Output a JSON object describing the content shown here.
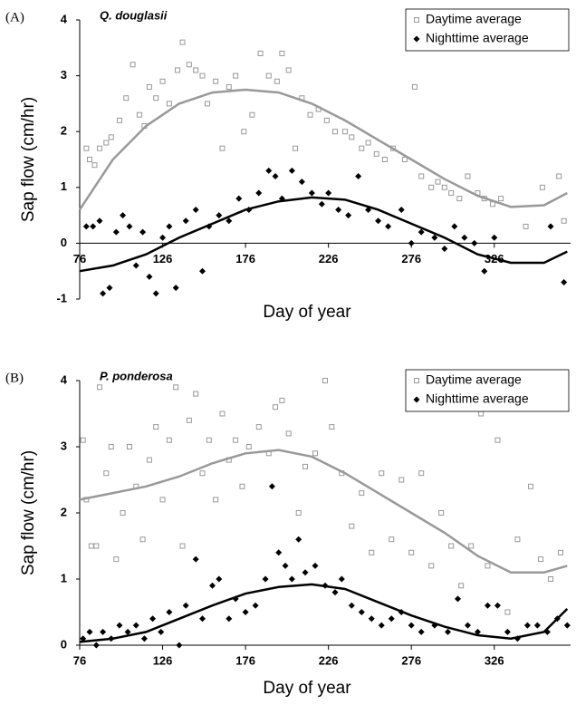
{
  "chart_data": [
    {
      "type": "scatter",
      "panel_label": "(A)",
      "title": "Q. douglasii",
      "x_label": "Day of year",
      "y_label": "Sap flow (cm/hr)",
      "xlim": [
        76,
        372
      ],
      "xticks": [
        76,
        126,
        176,
        226,
        276,
        326
      ],
      "ylim": [
        -1,
        4
      ],
      "yticks": [
        -1,
        0,
        1,
        2,
        3,
        4
      ],
      "legend": "upper right",
      "series": [
        {
          "name": "Daytime average",
          "color": "#999999",
          "marker": "square-open",
          "x": [
            80,
            82,
            85,
            88,
            92,
            95,
            100,
            104,
            108,
            112,
            115,
            118,
            122,
            126,
            130,
            135,
            138,
            142,
            146,
            150,
            153,
            158,
            162,
            166,
            170,
            175,
            180,
            185,
            190,
            195,
            198,
            202,
            206,
            210,
            215,
            220,
            225,
            230,
            236,
            240,
            246,
            250,
            255,
            260,
            265,
            272,
            278,
            282,
            288,
            292,
            296,
            300,
            305,
            310,
            316,
            320,
            325,
            330,
            345,
            355,
            365,
            368
          ],
          "values": [
            1.7,
            1.5,
            1.4,
            1.7,
            1.8,
            1.9,
            2.2,
            2.6,
            3.2,
            2.3,
            2.1,
            2.8,
            2.6,
            2.9,
            2.5,
            3.1,
            3.6,
            3.2,
            3.1,
            3.0,
            2.5,
            2.9,
            1.7,
            2.8,
            3.0,
            2.0,
            2.3,
            3.4,
            3.0,
            2.9,
            3.4,
            3.1,
            1.7,
            2.6,
            2.3,
            2.4,
            2.2,
            2.0,
            2.0,
            1.9,
            1.7,
            1.8,
            1.6,
            1.5,
            1.7,
            1.5,
            2.8,
            1.2,
            1.0,
            1.1,
            1.0,
            0.9,
            0.8,
            1.2,
            0.9,
            0.8,
            0.7,
            0.8,
            0.3,
            1.0,
            1.2,
            0.4
          ],
          "trend": {
            "x": [
              76,
              96,
              116,
              136,
              156,
              176,
              196,
              216,
              236,
              256,
              276,
              296,
              316,
              336,
              356,
              370
            ],
            "values": [
              0.6,
              1.5,
              2.1,
              2.5,
              2.7,
              2.75,
              2.7,
              2.5,
              2.2,
              1.85,
              1.5,
              1.15,
              0.85,
              0.65,
              0.68,
              0.9
            ]
          }
        },
        {
          "name": "Nighttime average",
          "color": "#000000",
          "marker": "diamond",
          "x": [
            80,
            84,
            88,
            90,
            94,
            98,
            102,
            106,
            110,
            114,
            118,
            122,
            126,
            130,
            134,
            140,
            146,
            150,
            154,
            160,
            166,
            172,
            178,
            184,
            190,
            194,
            198,
            204,
            210,
            216,
            222,
            226,
            232,
            238,
            244,
            250,
            256,
            262,
            270,
            276,
            282,
            290,
            296,
            302,
            308,
            314,
            320,
            326,
            360,
            368
          ],
          "values": [
            0.3,
            0.3,
            0.4,
            -0.9,
            -0.8,
            0.2,
            0.5,
            0.3,
            -0.4,
            0.2,
            -0.6,
            -0.9,
            0.1,
            0.3,
            -0.8,
            0.4,
            0.6,
            -0.5,
            0.3,
            0.5,
            0.4,
            0.8,
            0.6,
            0.9,
            1.3,
            1.2,
            0.8,
            1.3,
            1.1,
            0.9,
            0.7,
            0.9,
            0.6,
            0.5,
            1.2,
            0.6,
            0.4,
            0.3,
            0.6,
            0.0,
            0.2,
            0.1,
            -0.1,
            0.3,
            0.1,
            0.0,
            -0.5,
            0.1,
            0.3,
            -0.7
          ],
          "trend": {
            "x": [
              76,
              96,
              116,
              136,
              156,
              176,
              196,
              216,
              236,
              256,
              276,
              296,
              316,
              336,
              356,
              370
            ],
            "values": [
              -0.5,
              -0.4,
              -0.2,
              0.1,
              0.35,
              0.6,
              0.75,
              0.82,
              0.78,
              0.6,
              0.35,
              0.1,
              -0.2,
              -0.35,
              -0.35,
              -0.15
            ]
          }
        }
      ]
    },
    {
      "type": "scatter",
      "panel_label": "(B)",
      "title": "P. ponderosa",
      "x_label": "Day of year",
      "y_label": "Sap flow (cm/hr)",
      "xlim": [
        76,
        372
      ],
      "xticks": [
        76,
        126,
        176,
        226,
        276,
        326
      ],
      "ylim": [
        0,
        4
      ],
      "yticks": [
        0,
        1,
        2,
        3,
        4
      ],
      "legend": "upper right",
      "series": [
        {
          "name": "Daytime average",
          "color": "#999999",
          "marker": "square-open",
          "x": [
            78,
            80,
            83,
            86,
            88,
            92,
            95,
            98,
            102,
            106,
            110,
            114,
            118,
            122,
            126,
            130,
            134,
            138,
            142,
            146,
            150,
            154,
            158,
            162,
            166,
            170,
            174,
            178,
            184,
            190,
            194,
            198,
            202,
            208,
            212,
            218,
            224,
            228,
            234,
            240,
            246,
            252,
            258,
            264,
            270,
            276,
            282,
            288,
            294,
            300,
            306,
            312,
            318,
            322,
            328,
            334,
            340,
            348,
            354,
            360,
            366
          ],
          "values": [
            3.1,
            2.2,
            1.5,
            1.5,
            3.9,
            2.6,
            3.0,
            1.3,
            2.0,
            3.0,
            2.4,
            1.6,
            2.8,
            3.3,
            2.2,
            3.1,
            3.9,
            1.5,
            3.4,
            3.8,
            2.6,
            3.1,
            2.2,
            3.5,
            2.8,
            3.1,
            2.4,
            3.0,
            3.3,
            2.9,
            3.6,
            3.7,
            3.2,
            2.0,
            2.7,
            2.9,
            4.0,
            3.3,
            2.6,
            1.8,
            2.3,
            1.4,
            2.6,
            1.6,
            2.5,
            1.4,
            2.6,
            1.2,
            2.0,
            1.5,
            0.9,
            1.5,
            3.5,
            1.2,
            3.1,
            0.5,
            1.6,
            2.4,
            1.3,
            1.0,
            1.4
          ],
          "trend": {
            "x": [
              76,
              96,
              116,
              136,
              156,
              176,
              196,
              216,
              236,
              256,
              276,
              296,
              316,
              336,
              356,
              370
            ],
            "values": [
              2.2,
              2.3,
              2.4,
              2.55,
              2.75,
              2.9,
              2.95,
              2.85,
              2.6,
              2.3,
              2.0,
              1.7,
              1.35,
              1.1,
              1.1,
              1.2
            ]
          }
        },
        {
          "name": "Nighttime average",
          "color": "#000000",
          "marker": "diamond",
          "x": [
            78,
            82,
            86,
            90,
            95,
            100,
            105,
            110,
            115,
            120,
            125,
            130,
            136,
            140,
            146,
            150,
            156,
            160,
            166,
            170,
            176,
            182,
            188,
            192,
            196,
            200,
            204,
            208,
            212,
            218,
            224,
            230,
            234,
            240,
            246,
            252,
            258,
            264,
            270,
            276,
            282,
            290,
            298,
            304,
            310,
            316,
            322,
            328,
            334,
            340,
            346,
            352,
            358,
            364,
            370
          ],
          "values": [
            0.1,
            0.2,
            0.0,
            0.2,
            0.1,
            0.3,
            0.2,
            0.3,
            0.1,
            0.4,
            0.2,
            0.5,
            0.0,
            0.6,
            1.3,
            0.4,
            0.9,
            1.0,
            0.4,
            0.7,
            0.5,
            0.6,
            1.0,
            2.4,
            1.4,
            1.2,
            1.0,
            1.6,
            1.1,
            1.2,
            0.9,
            0.8,
            1.0,
            0.6,
            0.5,
            0.4,
            0.3,
            0.4,
            0.5,
            0.3,
            0.2,
            0.3,
            0.2,
            0.7,
            0.3,
            0.2,
            0.6,
            0.6,
            0.2,
            0.1,
            0.3,
            0.3,
            0.2,
            0.4,
            0.3
          ],
          "trend": {
            "x": [
              76,
              96,
              116,
              136,
              156,
              176,
              196,
              216,
              236,
              256,
              276,
              296,
              316,
              336,
              356,
              370
            ],
            "values": [
              0.05,
              0.1,
              0.2,
              0.4,
              0.6,
              0.78,
              0.88,
              0.92,
              0.85,
              0.65,
              0.45,
              0.28,
              0.15,
              0.1,
              0.2,
              0.55
            ]
          }
        }
      ]
    }
  ]
}
